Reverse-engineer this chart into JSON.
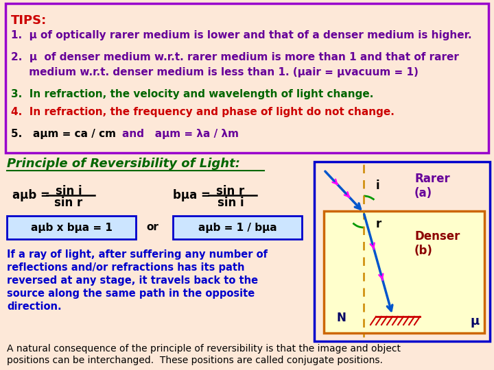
{
  "bg_color": "#fde8d8",
  "tips_border_color": "#9900cc",
  "tips_title": "TIPS:",
  "tips_title_color": "#cc0000",
  "tip1": "1.  μ of optically rarer medium is lower and that of a denser medium is higher.",
  "tip2_a": "2.  μ  of denser medium w.r.t. rarer medium is more than 1 and that of rarer",
  "tip2_b": "     medium w.r.t. denser medium is less than 1. (μair = μvacuum = 1)",
  "tip3": "3.  In refraction, the velocity and wavelength of light change.",
  "tip4": "4.  In refraction, the frequency and phase of light do not change.",
  "tip5a": "5.   aμm = ca / cm",
  "tip5b": "and   aμm = λa / λm",
  "principle_title": "Principle of Reversibility of Light:",
  "principle_color": "#006600",
  "formula1_top": "sin i",
  "formula1_bot": "sin r",
  "formula1_pre": "aμb =",
  "formula2_top": "sin r",
  "formula2_bot": "sin i",
  "formula2_pre": "bμa =",
  "box1_text": "aμb x bμa = 1",
  "box2_text": "aμb = 1 / bμa",
  "or_text": "or",
  "para1_color": "#0000cc",
  "para1_lines": [
    "If a ray of light, after suffering any number of",
    "reflections and/or refractions has its path",
    "reversed at any stage, it travels back to the",
    "source along the same path in the opposite",
    "direction."
  ],
  "para2_color": "#000000",
  "para2_lines": [
    "A natural consequence of the principle of reversibility is that the image and object",
    "positions can be interchanged.  These positions are called conjugate positions."
  ],
  "diagram_outer_border": "#0000cc",
  "diagram_inner_border": "#cc6600",
  "diagram_outer_bg": "#fde8d8",
  "diagram_inner_bg": "#ffffcc",
  "rarer_label": "Rarer\n(a)",
  "denser_label": "Denser\n(b)",
  "mu_label": "μ",
  "N_label": "N",
  "i_label": "i",
  "r_label": "r",
  "purple": "#660099",
  "green": "#006600",
  "red": "#cc0000",
  "blue": "#0000cc",
  "darkred": "#8b0000",
  "navy": "#000066",
  "rayblue": "#0055cc",
  "magenta": "#ff00ff",
  "arcgreen": "#009900"
}
